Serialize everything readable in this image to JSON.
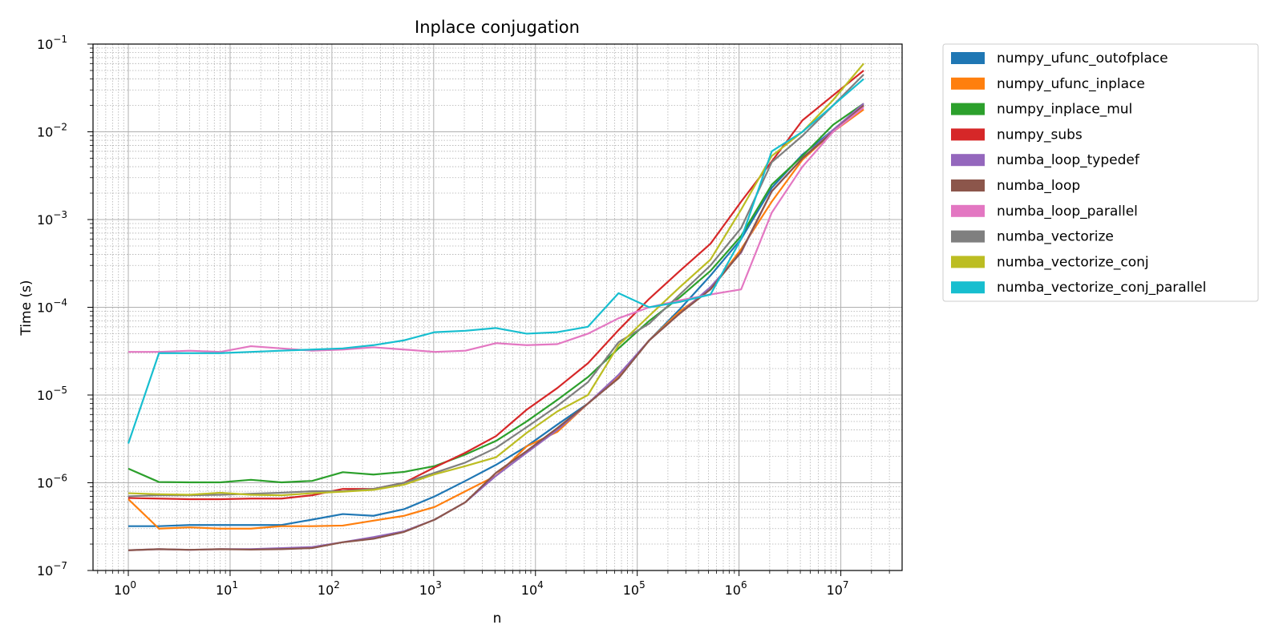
{
  "chart_data": {
    "type": "line",
    "title": "Inplace conjugation",
    "xlabel": "n",
    "ylabel": "Time (s)",
    "xscale": "log",
    "yscale": "log",
    "xlim": [
      0.45,
      40000000
    ],
    "ylim": [
      1e-07,
      0.1
    ],
    "grid": "major-and-minor",
    "legend_position": "outside-right",
    "x_ticks": [
      {
        "value": 1,
        "base": "10",
        "exp": "0"
      },
      {
        "value": 10,
        "base": "10",
        "exp": "1"
      },
      {
        "value": 100,
        "base": "10",
        "exp": "2"
      },
      {
        "value": 1000,
        "base": "10",
        "exp": "3"
      },
      {
        "value": 10000,
        "base": "10",
        "exp": "4"
      },
      {
        "value": 100000,
        "base": "10",
        "exp": "5"
      },
      {
        "value": 1000000,
        "base": "10",
        "exp": "6"
      },
      {
        "value": 10000000,
        "base": "10",
        "exp": "7"
      }
    ],
    "y_ticks": [
      {
        "value": 1e-07,
        "base": "10",
        "exp": "−7"
      },
      {
        "value": 1e-06,
        "base": "10",
        "exp": "−6"
      },
      {
        "value": 1e-05,
        "base": "10",
        "exp": "−5"
      },
      {
        "value": 0.0001,
        "base": "10",
        "exp": "−4"
      },
      {
        "value": 0.001,
        "base": "10",
        "exp": "−3"
      },
      {
        "value": 0.01,
        "base": "10",
        "exp": "−2"
      },
      {
        "value": 0.1,
        "base": "10",
        "exp": "−1"
      }
    ],
    "x": [
      1,
      2,
      4,
      8,
      16,
      32,
      64,
      128,
      256,
      512,
      1024,
      2048,
      4096,
      8192,
      16384,
      32768,
      65536,
      131072,
      262144,
      524288,
      1048576,
      2097152,
      4194304,
      8388608,
      16777216
    ],
    "series": [
      {
        "name": "numpy_ufunc_outofplace",
        "color": "#1f77b4",
        "values": [
          3.2e-07,
          3.2e-07,
          3.3e-07,
          3.3e-07,
          3.3e-07,
          3.3e-07,
          3.8e-07,
          4.4e-07,
          4.2e-07,
          5e-07,
          7e-07,
          1.05e-06,
          1.6e-06,
          2.6e-06,
          4.6e-06,
          8e-06,
          1.6e-05,
          4.2e-05,
          9.5e-05,
          0.00023,
          0.0006,
          0.0023,
          0.0055,
          0.0105,
          0.02
        ]
      },
      {
        "name": "numpy_ufunc_inplace",
        "color": "#ff7f0e",
        "values": [
          6.5e-07,
          3e-07,
          3.1e-07,
          3e-07,
          3e-07,
          3.2e-07,
          3.2e-07,
          3.25e-07,
          3.7e-07,
          4.2e-07,
          5.3e-07,
          8e-07,
          1.2e-06,
          2.6e-06,
          3.8e-06,
          8e-06,
          1.6e-05,
          4.2e-05,
          9e-05,
          0.00016,
          0.00046,
          0.0016,
          0.0048,
          0.01,
          0.018
        ]
      },
      {
        "name": "numpy_inplace_mul",
        "color": "#2ca02c",
        "values": [
          1.45e-06,
          1.02e-06,
          1.01e-06,
          1.01e-06,
          1.08e-06,
          1.01e-06,
          1.05e-06,
          1.32e-06,
          1.24e-06,
          1.33e-06,
          1.55e-06,
          2.1e-06,
          3e-06,
          5e-06,
          8.8e-06,
          1.6e-05,
          3.4e-05,
          7e-05,
          0.00013,
          0.00026,
          0.00065,
          0.0025,
          0.0053,
          0.012,
          0.021
        ]
      },
      {
        "name": "numpy_subs",
        "color": "#d62728",
        "values": [
          6.7e-07,
          6.6e-07,
          6.5e-07,
          6.5e-07,
          6.6e-07,
          6.6e-07,
          7.2e-07,
          8.5e-07,
          8.5e-07,
          1e-06,
          1.5e-06,
          2.2e-06,
          3.4e-06,
          6.8e-06,
          1.2e-05,
          2.3e-05,
          5.5e-05,
          0.000125,
          0.00026,
          0.00053,
          0.0016,
          0.0046,
          0.0135,
          0.026,
          0.05
        ]
      },
      {
        "name": "numba_loop_typedef",
        "color": "#9467bd",
        "values": [
          1.7e-07,
          1.75e-07,
          1.72e-07,
          1.75e-07,
          1.75e-07,
          1.8e-07,
          1.85e-07,
          2.1e-07,
          2.4e-07,
          2.8e-07,
          3.8e-07,
          6e-07,
          1.2e-06,
          2.2e-06,
          4e-06,
          8e-06,
          1.7e-05,
          4.2e-05,
          8.5e-05,
          0.00017,
          0.00042,
          0.0021,
          0.005,
          0.0105,
          0.021
        ]
      },
      {
        "name": "numba_loop",
        "color": "#8c564b",
        "values": [
          1.7e-07,
          1.75e-07,
          1.72e-07,
          1.75e-07,
          1.73e-07,
          1.75e-07,
          1.8e-07,
          2.1e-07,
          2.3e-07,
          2.75e-07,
          3.8e-07,
          6e-07,
          1.3e-06,
          2.3e-06,
          4.2e-06,
          8e-06,
          1.55e-05,
          4.2e-05,
          8.5e-05,
          0.00016,
          0.00043,
          0.0021,
          0.005,
          0.01,
          0.02
        ]
      },
      {
        "name": "numba_loop_parallel",
        "color": "#e377c2",
        "values": [
          3.1e-05,
          3.1e-05,
          3.2e-05,
          3.1e-05,
          3.6e-05,
          3.4e-05,
          3.2e-05,
          3.3e-05,
          3.5e-05,
          3.3e-05,
          3.1e-05,
          3.2e-05,
          3.9e-05,
          3.7e-05,
          3.8e-05,
          5e-05,
          7.5e-05,
          0.0001,
          0.00012,
          0.00014,
          0.00016,
          0.0012,
          0.004,
          0.01,
          0.019
        ]
      },
      {
        "name": "numba_vectorize",
        "color": "#7f7f7f",
        "values": [
          7e-07,
          7.2e-07,
          7.2e-07,
          7.3e-07,
          7.5e-07,
          7.7e-07,
          8e-07,
          8e-07,
          8.5e-07,
          1e-06,
          1.3e-06,
          1.7e-06,
          2.5e-06,
          4.3e-06,
          7.5e-06,
          1.4e-05,
          4e-05,
          6.5e-05,
          0.00014,
          0.0003,
          0.0008,
          0.0045,
          0.009,
          0.02,
          0.045
        ]
      },
      {
        "name": "numba_vectorize_conj",
        "color": "#bcbd22",
        "values": [
          7.6e-07,
          7.4e-07,
          7.3e-07,
          7.7e-07,
          7.3e-07,
          7.2e-07,
          7.6e-07,
          7.9e-07,
          8.3e-07,
          9.5e-07,
          1.25e-06,
          1.55e-06,
          1.95e-06,
          3.7e-06,
          6.5e-06,
          1e-05,
          3.7e-05,
          8e-05,
          0.00017,
          0.00035,
          0.0013,
          0.0053,
          0.01,
          0.023,
          0.06
        ]
      },
      {
        "name": "numba_vectorize_conj_parallel",
        "color": "#17becf",
        "values": [
          2.8e-06,
          3e-05,
          3e-05,
          3e-05,
          3.1e-05,
          3.2e-05,
          3.3e-05,
          3.4e-05,
          3.7e-05,
          4.2e-05,
          5.2e-05,
          5.4e-05,
          5.8e-05,
          5e-05,
          5.2e-05,
          6e-05,
          0.000145,
          0.0001,
          0.000115,
          0.00014,
          0.0006,
          0.006,
          0.01,
          0.02,
          0.04
        ]
      }
    ]
  }
}
